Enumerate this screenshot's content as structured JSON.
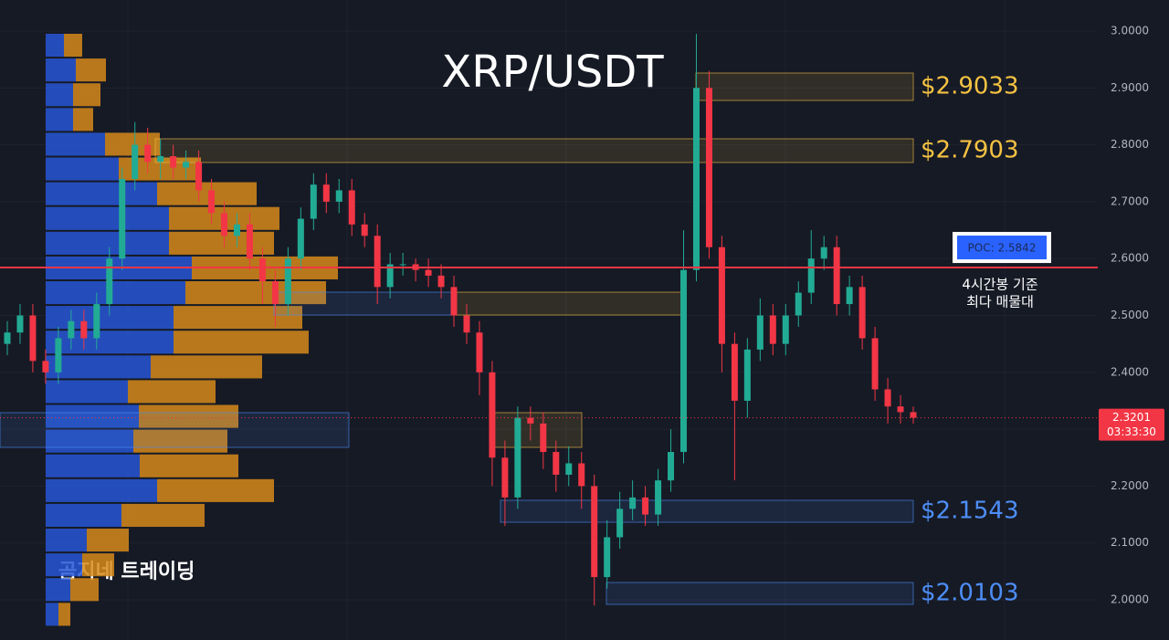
{
  "chart_data": {
    "type": "candlestick",
    "title": "XRP/USDT",
    "watermark": "곰지네 트레이딩",
    "ylim": [
      1.9294,
      3.0546
    ],
    "yticks": [
      {
        "value": 2.0,
        "label": "2.0000"
      },
      {
        "value": 2.1,
        "label": "2.1000"
      },
      {
        "value": 2.2,
        "label": "2.2000"
      },
      {
        "value": 2.3,
        "label": "2.3000"
      },
      {
        "value": 2.4,
        "label": "2.4000"
      },
      {
        "value": 2.5,
        "label": "2.5000"
      },
      {
        "value": 2.6,
        "label": "2.6000"
      },
      {
        "value": 2.7,
        "label": "2.7000"
      },
      {
        "value": 2.8,
        "label": "2.8000"
      },
      {
        "value": 2.9,
        "label": "2.9000"
      },
      {
        "value": 3.0,
        "label": "3.0000"
      }
    ],
    "grid": true,
    "up_color": "#22ab94",
    "down_color": "#f23645",
    "open": [
      2.45,
      2.47,
      2.5,
      2.42,
      2.4,
      2.46,
      2.49,
      2.46,
      2.52,
      2.6,
      2.74,
      2.8,
      2.77,
      2.78,
      2.76,
      2.77,
      2.72,
      2.68,
      2.64,
      2.66,
      2.6,
      2.56,
      2.52,
      2.6,
      2.67,
      2.73,
      2.7,
      2.72,
      2.66,
      2.64,
      2.55,
      2.59,
      2.59,
      2.58,
      2.57,
      2.55,
      2.5,
      2.47,
      2.4,
      2.25,
      2.18,
      2.32,
      2.31,
      2.26,
      2.22,
      2.24,
      2.2,
      2.04,
      2.11,
      2.16,
      2.18,
      2.15,
      2.21,
      2.26,
      2.58,
      2.9,
      2.62,
      2.45,
      2.35,
      2.44,
      2.5,
      2.45,
      2.5,
      2.54,
      2.6,
      2.62,
      2.52,
      2.55,
      2.46,
      2.37,
      2.34,
      2.33
    ],
    "high": [
      2.49,
      2.52,
      2.52,
      2.44,
      2.48,
      2.51,
      2.51,
      2.54,
      2.62,
      2.76,
      2.84,
      2.83,
      2.81,
      2.8,
      2.79,
      2.79,
      2.74,
      2.7,
      2.68,
      2.68,
      2.62,
      2.58,
      2.62,
      2.69,
      2.75,
      2.75,
      2.74,
      2.74,
      2.68,
      2.66,
      2.61,
      2.61,
      2.6,
      2.6,
      2.59,
      2.57,
      2.52,
      2.49,
      2.42,
      2.28,
      2.34,
      2.34,
      2.33,
      2.28,
      2.27,
      2.26,
      2.22,
      2.14,
      2.19,
      2.21,
      2.2,
      2.23,
      2.3,
      2.65,
      2.995,
      2.93,
      2.64,
      2.47,
      2.46,
      2.53,
      2.52,
      2.52,
      2.56,
      2.65,
      2.64,
      2.64,
      2.57,
      2.57,
      2.48,
      2.39,
      2.36,
      2.34
    ],
    "low": [
      2.43,
      2.45,
      2.4,
      2.38,
      2.38,
      2.44,
      2.44,
      2.44,
      2.5,
      2.58,
      2.72,
      2.75,
      2.74,
      2.74,
      2.74,
      2.7,
      2.66,
      2.62,
      2.62,
      2.58,
      2.52,
      2.48,
      2.5,
      2.58,
      2.65,
      2.68,
      2.68,
      2.64,
      2.62,
      2.52,
      2.53,
      2.57,
      2.56,
      2.55,
      2.53,
      2.48,
      2.45,
      2.36,
      2.2,
      2.13,
      2.16,
      2.28,
      2.23,
      2.19,
      2.2,
      2.16,
      1.99,
      2.02,
      2.09,
      2.14,
      2.13,
      2.13,
      2.19,
      2.24,
      2.56,
      2.6,
      2.4,
      2.21,
      2.32,
      2.42,
      2.43,
      2.43,
      2.48,
      2.52,
      2.58,
      2.5,
      2.5,
      2.44,
      2.35,
      2.31,
      2.31,
      2.31
    ],
    "close": [
      2.47,
      2.5,
      2.42,
      2.4,
      2.46,
      2.49,
      2.46,
      2.52,
      2.6,
      2.74,
      2.8,
      2.77,
      2.78,
      2.76,
      2.77,
      2.72,
      2.68,
      2.64,
      2.66,
      2.6,
      2.56,
      2.52,
      2.6,
      2.67,
      2.73,
      2.7,
      2.72,
      2.66,
      2.64,
      2.55,
      2.59,
      2.59,
      2.58,
      2.57,
      2.55,
      2.5,
      2.47,
      2.4,
      2.25,
      2.18,
      2.32,
      2.31,
      2.26,
      2.22,
      2.24,
      2.2,
      2.04,
      2.11,
      2.16,
      2.18,
      2.15,
      2.21,
      2.26,
      2.58,
      2.9,
      2.62,
      2.45,
      2.35,
      2.44,
      2.5,
      2.45,
      2.5,
      2.54,
      2.6,
      2.62,
      2.52,
      2.55,
      2.46,
      2.37,
      2.34,
      2.33,
      2.3201
    ],
    "volume_profile": {
      "levels": [
        2.9968,
        2.9533,
        2.9098,
        2.8663,
        2.8228,
        2.7793,
        2.7358,
        2.6923,
        2.6488,
        2.6053,
        2.5618,
        2.5183,
        2.4748,
        2.4313,
        2.3878,
        2.3443,
        2.3008,
        2.2573,
        2.2138,
        2.1703,
        2.1268,
        2.0833,
        2.0398,
        1.9963
      ],
      "buy": [
        20,
        33,
        30,
        30,
        65,
        80,
        122,
        135,
        135,
        160,
        153,
        140,
        140,
        115,
        90,
        102,
        96,
        103,
        122,
        83,
        45,
        40,
        27,
        14
      ],
      "sell": [
        20,
        33,
        30,
        22,
        60,
        90,
        109,
        121,
        115,
        160,
        154,
        141,
        148,
        122,
        96,
        109,
        103,
        108,
        128,
        91,
        46,
        35,
        31,
        13
      ],
      "buy_color": "#2757d6",
      "sell_color": "#d68a1a"
    },
    "zones": [
      {
        "label": "$2.9033",
        "top": 2.9262,
        "bottom": 2.878,
        "color": "#f5c242"
      },
      {
        "label": "$2.7903",
        "top": 2.8106,
        "bottom": 2.7689,
        "color": "#f5c242"
      },
      {
        "top": 2.5409,
        "bottom": 2.5008,
        "color": "#f5c242"
      },
      {
        "top": 2.5409,
        "bottom": 2.5008,
        "color": "#4d8ef7"
      },
      {
        "top": 2.3291,
        "bottom": 2.2681,
        "color": "#f5c242"
      },
      {
        "top": 2.3291,
        "bottom": 2.2681,
        "color": "#4d8ef7"
      },
      {
        "label": "$2.1543",
        "top": 2.175,
        "bottom": 2.1364,
        "color": "#4d8ef7"
      },
      {
        "label": "$2.0103",
        "top": 2.0305,
        "bottom": 1.992,
        "color": "#4d8ef7"
      }
    ],
    "poc": {
      "value": 2.5842,
      "label": "POC: 2.5842",
      "note": [
        "4시간봉 기준",
        "최다 매물대"
      ],
      "color": "#f23645"
    },
    "last_price": {
      "value": 2.3201,
      "label": "2.3201",
      "countdown": "03:33:30"
    }
  }
}
